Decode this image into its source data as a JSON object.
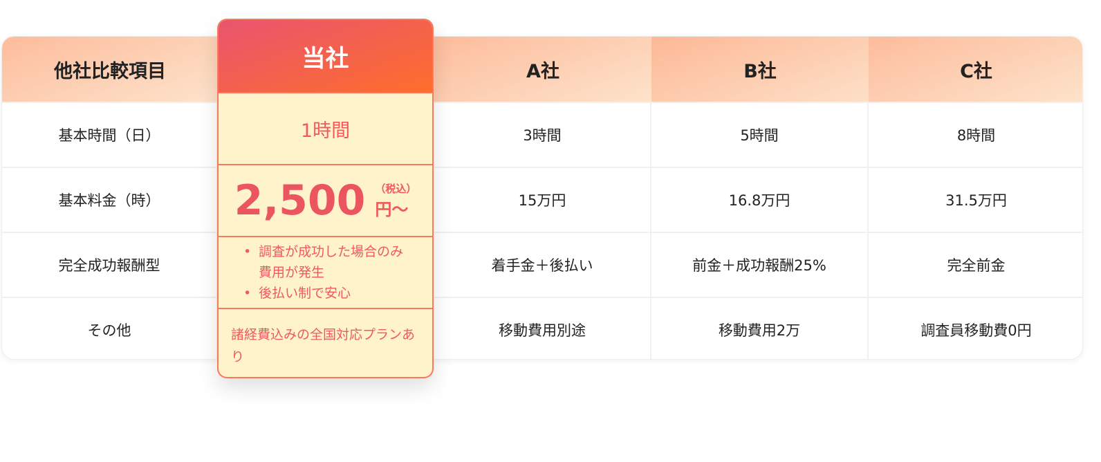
{
  "header": {
    "item": "他社比較項目",
    "ours": "当社",
    "a": "A社",
    "b": "B社",
    "c": "C社"
  },
  "rows": [
    {
      "label": "基本時間（日）",
      "ours": "1時間",
      "a": "3時間",
      "b": "5時間",
      "c": "8時間"
    },
    {
      "label": "基本料金（時）",
      "ours_price": "2,500",
      "ours_tax": "（税込）",
      "ours_unit": "円〜",
      "a": "15万円",
      "b": "16.8万円",
      "c": "31.5万円"
    },
    {
      "label": "完全成功報酬型",
      "ours_bullets": [
        "調査が成功した場合のみ費用が発生",
        "後払い制で安心"
      ],
      "a": "着手金＋後払い",
      "b": "前金＋成功報酬25%",
      "c": "完全前金"
    },
    {
      "label": "その他",
      "ours": "諸経費込みの全国対応プランあり",
      "a": "移動費用別途",
      "b": "移動費用2万",
      "c": "調査員移動費0円"
    }
  ],
  "colors": {
    "accent_start": "#e9546f",
    "accent_end": "#fe6e2c",
    "highlight_bg": "#fff3cc",
    "header_bg": "#fdc8a8"
  }
}
